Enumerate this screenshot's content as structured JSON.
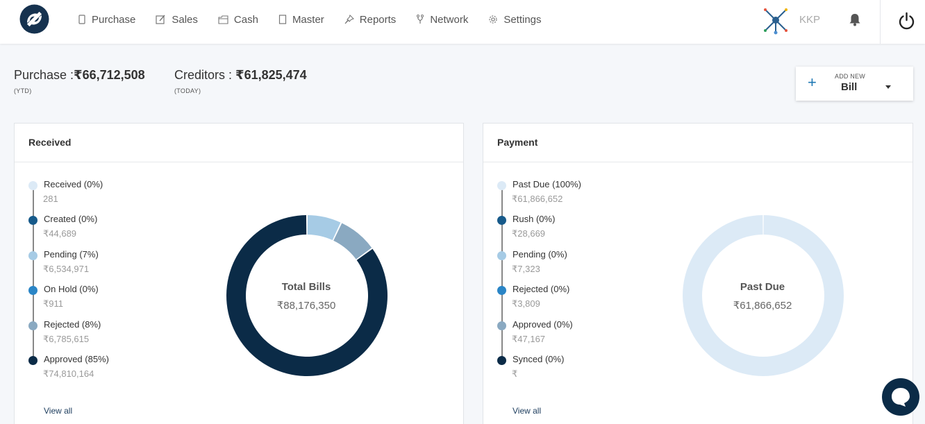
{
  "nav": {
    "items": [
      {
        "label": "Purchase",
        "icon": "phone-icon"
      },
      {
        "label": "Sales",
        "icon": "edit-icon"
      },
      {
        "label": "Cash",
        "icon": "folder-icon"
      },
      {
        "label": "Master",
        "icon": "document-icon"
      },
      {
        "label": "Reports",
        "icon": "pin-icon"
      },
      {
        "label": "Network",
        "icon": "fork-icon"
      },
      {
        "label": "Settings",
        "icon": "gear-icon"
      }
    ],
    "user_initials": "KKP"
  },
  "summary": {
    "purchase_label": "Purchase :",
    "purchase_amount": "₹66,712,508",
    "purchase_sub": "(YTD)",
    "creditors_label": "Creditors :",
    "creditors_amount": "₹61,825,474",
    "creditors_sub": "(TODAY)"
  },
  "add_new": {
    "small": "ADD NEW",
    "big": "Bill",
    "plus": "+"
  },
  "colors": {
    "dark_navy": "#0b2b47",
    "navy": "#175a8a",
    "blue": "#2a85c6",
    "light_blue": "#a6cbe5",
    "slate": "#8aa9c1",
    "pale": "#dceaf6"
  },
  "received": {
    "title": "Received",
    "view_all": "View all",
    "items": [
      {
        "label": "Received  (0%)",
        "value": "281",
        "color": "#dceaf6"
      },
      {
        "label": "Created (0%)",
        "value": "₹44,689",
        "color": "#175a8a"
      },
      {
        "label": "Pending (7%)",
        "value": "₹6,534,971",
        "color": "#a6cbe5"
      },
      {
        "label": "On Hold (0%)",
        "value": "₹911",
        "color": "#2a85c6"
      },
      {
        "label": "Rejected (8%)",
        "value": "₹6,785,615",
        "color": "#8aa9c1"
      },
      {
        "label": "Approved (85%)",
        "value": "₹74,810,164",
        "color": "#0b2b47"
      }
    ],
    "donut_title": "Total Bills",
    "donut_value": "₹88,176,350"
  },
  "payment": {
    "title": "Payment",
    "view_all": "View all",
    "items": [
      {
        "label": "Past Due  (100%)",
        "value": "₹61,866,652",
        "color": "#dceaf6"
      },
      {
        "label": "Rush (0%)",
        "value": "₹28,669",
        "color": "#175a8a"
      },
      {
        "label": "Pending (0%)",
        "value": "₹7,323",
        "color": "#a6cbe5"
      },
      {
        "label": "Rejected (0%)",
        "value": "₹3,809",
        "color": "#2a85c6"
      },
      {
        "label": "Approved (0%)",
        "value": "₹47,167",
        "color": "#8aa9c1"
      },
      {
        "label": "Synced (0%)",
        "value": "₹",
        "color": "#0b2b47"
      }
    ],
    "donut_title": "Past Due",
    "donut_value": "₹61,866,652"
  },
  "chart_data": [
    {
      "type": "pie",
      "categories": [
        "Pending",
        "Rejected",
        "Approved"
      ],
      "values": [
        7,
        8,
        85
      ],
      "colors": [
        "#a6cbe5",
        "#8aa9c1",
        "#0b2b47"
      ]
    },
    {
      "type": "pie",
      "categories": [
        "Past Due"
      ],
      "values": [
        100
      ],
      "colors": [
        "#dceaf6"
      ]
    }
  ]
}
